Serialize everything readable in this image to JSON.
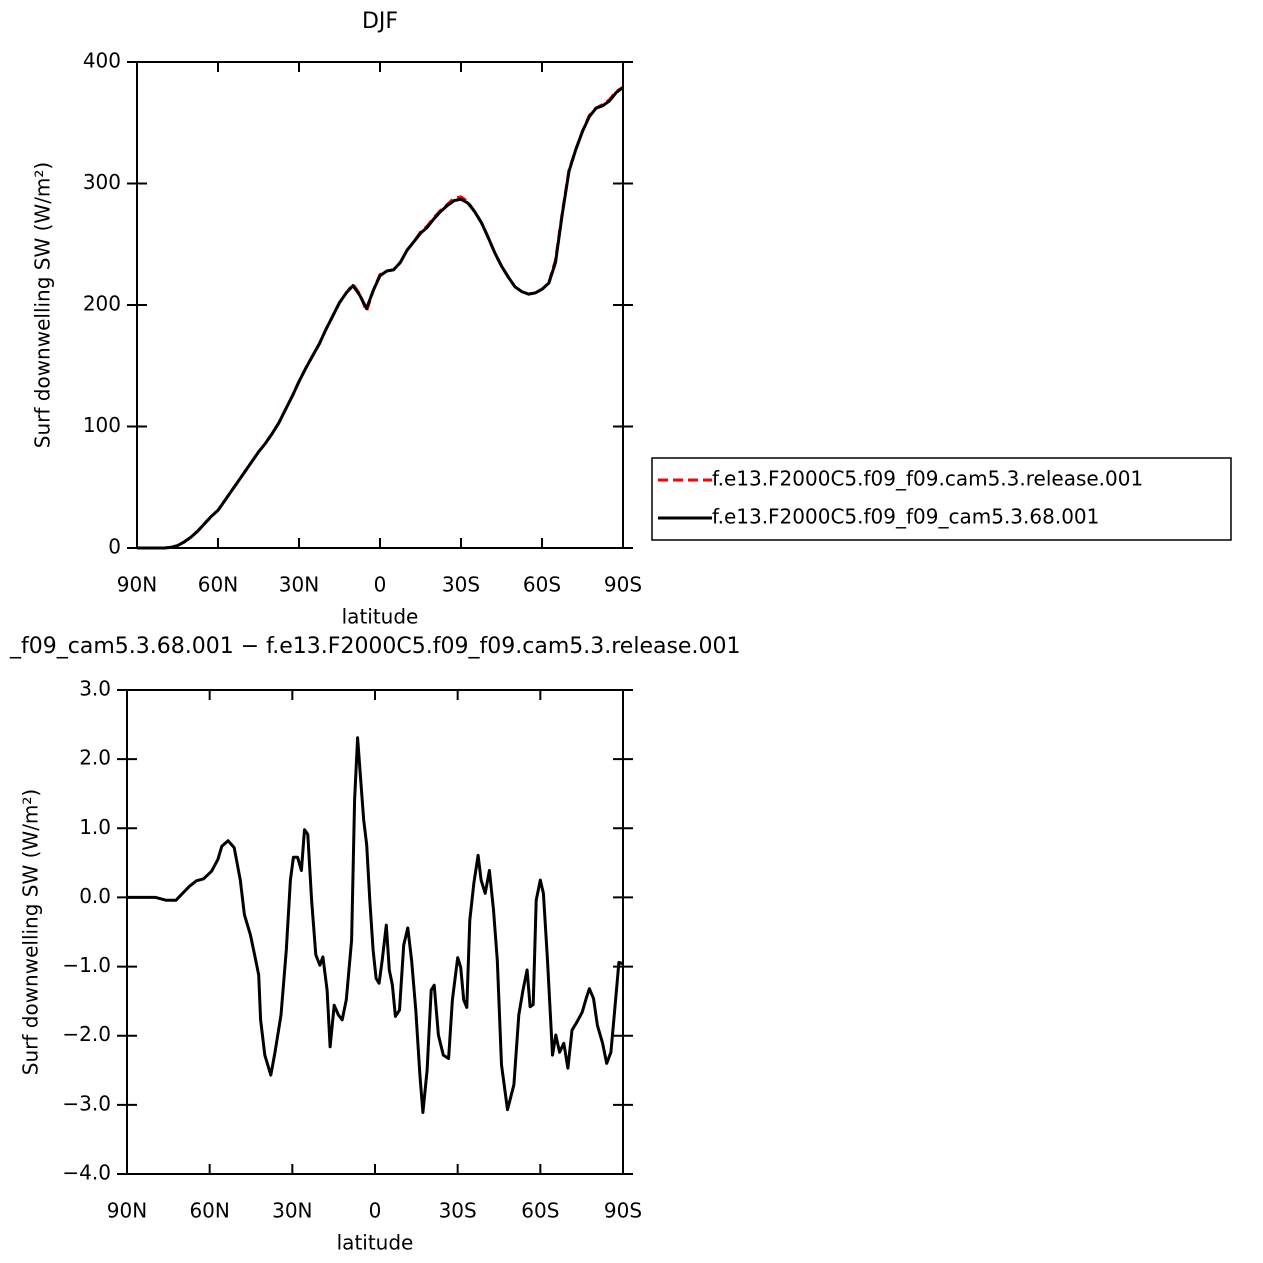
{
  "chart_data": [
    {
      "type": "line",
      "title": "DJF",
      "x_label": "latitude",
      "y_label": "Surf downwelling SW (W/m²)",
      "x": [
        90,
        87.5,
        85,
        82.5,
        80,
        77.5,
        75,
        72.5,
        70,
        67.5,
        65,
        62.5,
        60,
        57.5,
        55,
        52.5,
        50,
        47.5,
        45,
        42.5,
        40,
        37.5,
        35,
        32.5,
        30,
        27.5,
        25,
        22.5,
        20,
        17.5,
        15,
        12.5,
        10,
        7.5,
        5,
        2.5,
        0,
        -2.5,
        -5,
        -7.5,
        -10,
        -12.5,
        -15,
        -17.5,
        -20,
        -22.5,
        -25,
        -27.5,
        -30,
        -32.5,
        -35,
        -37.5,
        -40,
        -42.5,
        -45,
        -47.5,
        -50,
        -52.5,
        -55,
        -57.5,
        -60,
        -62.5,
        -65,
        -67.5,
        -70,
        -72.5,
        -75,
        -77.5,
        -80,
        -82.5,
        -85,
        -87.5,
        -90
      ],
      "series": [
        {
          "name": "f.e13.F2000C5.f09_f09.cam5.3.release.001",
          "color": "#ff0000",
          "dashed": true,
          "values": [
            0,
            0,
            0,
            0,
            0,
            0.5,
            2,
            5,
            9,
            14,
            20,
            26,
            31,
            39,
            47,
            55,
            63,
            71,
            79,
            86,
            94,
            103,
            114,
            125,
            137,
            148,
            158,
            168,
            180,
            191,
            202,
            210,
            217,
            209,
            195,
            212,
            225,
            228,
            229,
            235,
            245,
            252,
            260,
            265,
            272,
            278,
            283,
            288,
            289,
            285,
            277,
            268,
            256,
            243,
            232,
            223,
            215,
            211,
            209,
            210,
            213,
            218,
            237,
            276,
            311,
            328,
            343,
            356,
            362,
            365,
            369,
            376,
            379
          ]
        },
        {
          "name": "f.e13.F2000C5.f09_f09_cam5.3.68.001",
          "color": "#000000",
          "dashed": false,
          "values": [
            0,
            0,
            0,
            0,
            0,
            0.5,
            2,
            5,
            9,
            14,
            20,
            26,
            31,
            39,
            47,
            55,
            63,
            71,
            79,
            86,
            94,
            103,
            114,
            125,
            137,
            148,
            158,
            168,
            180,
            191,
            202,
            210,
            216,
            208,
            197,
            212,
            224,
            228,
            229,
            235,
            245,
            252,
            259,
            264,
            271,
            277,
            282,
            286,
            287,
            284,
            277,
            268,
            256,
            243,
            232,
            223,
            215,
            211,
            209,
            210,
            213,
            218,
            235,
            275,
            310,
            328,
            343,
            355,
            362,
            364,
            368,
            375,
            379
          ]
        }
      ],
      "xlim": [
        90,
        -90
      ],
      "xticks": [
        {
          "value": 90,
          "label": "90N"
        },
        {
          "value": 60,
          "label": "60N"
        },
        {
          "value": 30,
          "label": "30N"
        },
        0,
        {
          "value": -30,
          "label": "30S"
        },
        {
          "value": -60,
          "label": "60S"
        },
        {
          "value": -90,
          "label": "90S"
        }
      ],
      "ylim": [
        0,
        400
      ],
      "yticks": [
        0,
        100,
        200,
        300,
        400
      ]
    },
    {
      "type": "line",
      "title": "_f09_cam5.3.68.001 − f.e13.F2000C5.f09_f09.cam5.3.release.001",
      "x_label": "latitude",
      "y_label": "Surf downwelling SW (W/m²)",
      "x": [
        90,
        79.6,
        75.9,
        72.2,
        67.4,
        64.8,
        62.2,
        59.3,
        57,
        55.6,
        53.3,
        51.1,
        48.9,
        47.4,
        45.2,
        43.7,
        42.2,
        41.5,
        40,
        37.8,
        36.3,
        34.1,
        32.2,
        30.7,
        29.6,
        28.1,
        26.7,
        25.6,
        24.4,
        23,
        21.5,
        20,
        18.9,
        17.4,
        16.3,
        14.8,
        13.3,
        11.9,
        10.4,
        8.5,
        7.4,
        6.3,
        5.2,
        4.1,
        3,
        1.9,
        0.7,
        -0.4,
        -1.5,
        -2.6,
        -4.1,
        -5.2,
        -6.3,
        -7.4,
        -8.9,
        -10.4,
        -11.9,
        -13.3,
        -14.8,
        -16.3,
        -17.4,
        -18.9,
        -20.4,
        -21.5,
        -23,
        -24.8,
        -26.7,
        -28.1,
        -30,
        -31.1,
        -32.2,
        -33.3,
        -34.4,
        -35.9,
        -37.4,
        -38.5,
        -40,
        -41.5,
        -43,
        -44.4,
        -45.9,
        -48.1,
        -50.4,
        -52.2,
        -53.7,
        -55.2,
        -56.3,
        -57.4,
        -58.5,
        -60,
        -61.1,
        -62.6,
        -64.4,
        -65.6,
        -67,
        -68.5,
        -70,
        -71.5,
        -73.3,
        -75.2,
        -76.7,
        -77.8,
        -79.3,
        -80.7,
        -82.6,
        -84.1,
        -85.6,
        -87,
        -88.5,
        -90
      ],
      "values": [
        0,
        0,
        -0.04,
        -0.04,
        0.16,
        0.24,
        0.27,
        0.38,
        0.55,
        0.74,
        0.82,
        0.72,
        0.25,
        -0.25,
        -0.54,
        -0.83,
        -1.12,
        -1.77,
        -2.28,
        -2.57,
        -2.24,
        -1.7,
        -0.76,
        0.25,
        0.58,
        0.58,
        0.39,
        0.98,
        0.91,
        -0.04,
        -0.83,
        -0.98,
        -0.86,
        -1.34,
        -2.16,
        -1.56,
        -1.7,
        -1.77,
        -1.48,
        -0.62,
        1.41,
        2.31,
        1.7,
        1.12,
        0.76,
        -0.04,
        -0.76,
        -1.17,
        -1.24,
        -0.91,
        -0.4,
        -1.05,
        -1.27,
        -1.72,
        -1.63,
        -0.69,
        -0.44,
        -0.91,
        -1.63,
        -2.57,
        -3.11,
        -2.5,
        -1.34,
        -1.27,
        -1.99,
        -2.28,
        -2.33,
        -1.48,
        -0.87,
        -1.01,
        -1.48,
        -1.59,
        -0.33,
        0.21,
        0.61,
        0.25,
        0.06,
        0.39,
        -0.18,
        -0.91,
        -2.42,
        -3.07,
        -2.71,
        -1.7,
        -1.34,
        -1.05,
        -1.58,
        -1.55,
        -0.04,
        0.25,
        0.06,
        -0.91,
        -2.28,
        -1.99,
        -2.24,
        -2.11,
        -2.47,
        -1.92,
        -1.8,
        -1.66,
        -1.45,
        -1.32,
        -1.46,
        -1.85,
        -2.11,
        -2.4,
        -2.24,
        -1.63,
        -0.94,
        -0.96
      ],
      "color": "#000000",
      "xlim": [
        90,
        -90
      ],
      "xticks": [
        {
          "value": 90,
          "label": "90N"
        },
        {
          "value": 60,
          "label": "60N"
        },
        {
          "value": 30,
          "label": "30N"
        },
        0,
        {
          "value": -30,
          "label": "30S"
        },
        {
          "value": -60,
          "label": "60S"
        },
        {
          "value": -90,
          "label": "90S"
        }
      ],
      "ylim": [
        -4,
        3
      ],
      "yticks": [
        {
          "value": -4,
          "label": "−4.0"
        },
        {
          "value": -3,
          "label": "−3.0"
        },
        {
          "value": -2,
          "label": "−2.0"
        },
        {
          "value": -1,
          "label": "−1.0"
        },
        {
          "value": 0,
          "label": "0.0"
        },
        {
          "value": 1,
          "label": "1.0"
        },
        {
          "value": 2,
          "label": "2.0"
        },
        {
          "value": 3,
          "label": "3.0"
        }
      ]
    }
  ]
}
